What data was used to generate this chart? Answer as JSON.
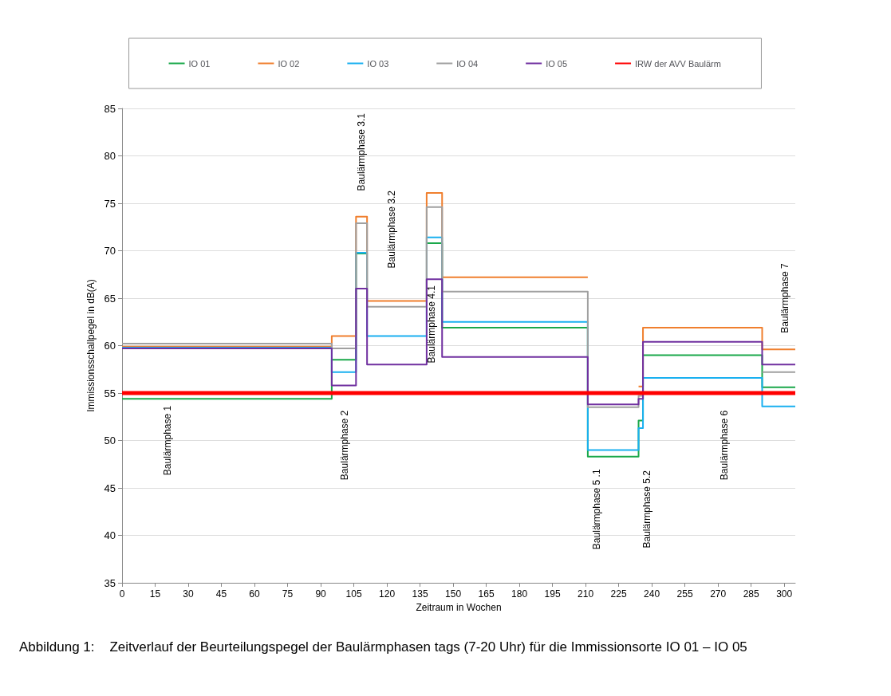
{
  "chart_data": {
    "type": "step",
    "xlabel": "Zeitraum in Wochen",
    "ylabel": "Immissionsschallpegel in dB(A)",
    "x": [
      0,
      95,
      106,
      111,
      138,
      145,
      211,
      234,
      236,
      290,
      305
    ],
    "series": [
      {
        "name": "IO 01",
        "color": "#1aa84a",
        "values": [
          54.4,
          58.5,
          69.7,
          null,
          70.8,
          61.9,
          48.3,
          52.1,
          59.0,
          55.6,
          55.6
        ]
      },
      {
        "name": "IO 02",
        "color": "#f07f2e",
        "values": [
          59.9,
          61.0,
          73.6,
          64.7,
          76.1,
          67.2,
          null,
          55.7,
          61.9,
          59.6,
          59.6
        ]
      },
      {
        "name": "IO 03",
        "color": "#1ab0f0",
        "values": [
          59.8,
          57.2,
          69.8,
          61.0,
          71.4,
          62.5,
          49.0,
          51.3,
          56.6,
          53.6,
          53.6
        ]
      },
      {
        "name": "IO 04",
        "color": "#a0a0a0",
        "values": [
          60.2,
          59.7,
          72.9,
          64.1,
          74.6,
          65.7,
          53.5,
          54.7,
          null,
          57.2,
          57.2
        ]
      },
      {
        "name": "IO 05",
        "color": "#7030a0",
        "values": [
          59.7,
          55.8,
          66.0,
          58.0,
          67.0,
          58.8,
          53.8,
          54.4,
          60.4,
          58.0,
          58.0
        ]
      }
    ],
    "ref_lines": [
      {
        "axis": "y",
        "value": 55,
        "label": "IRW der AVV Baulärm",
        "color": "#ff0000"
      }
    ],
    "xlim": [
      0,
      305
    ],
    "xticks": [
      0,
      15,
      30,
      45,
      60,
      75,
      90,
      105,
      120,
      135,
      150,
      165,
      180,
      195,
      210,
      225,
      240,
      255,
      270,
      285,
      300
    ],
    "ylim": [
      35,
      85
    ],
    "yticks": [
      35,
      40,
      45,
      50,
      55,
      60,
      65,
      70,
      75,
      80,
      85
    ],
    "grid": "y",
    "legend": "top",
    "marker": "none",
    "line_style": "solid",
    "annotations": [
      "Baulärmphase 1",
      "Baulärmphase 2",
      "Baulärmphase 3.1",
      "Baulärmphase 3.2",
      "Baulärmphase 4.1",
      "Baulärmphase 5 .1",
      "Baulärmphase 5.2",
      "Baulärmphase 6",
      "Baulärmphase 7",
      "Abbildung 1:    Zeitverlauf der Beurteilungspegel der Baulärmphasen tags (7-20 Uhr) für die Immissionsorte IO 01 – IO 05"
    ]
  }
}
